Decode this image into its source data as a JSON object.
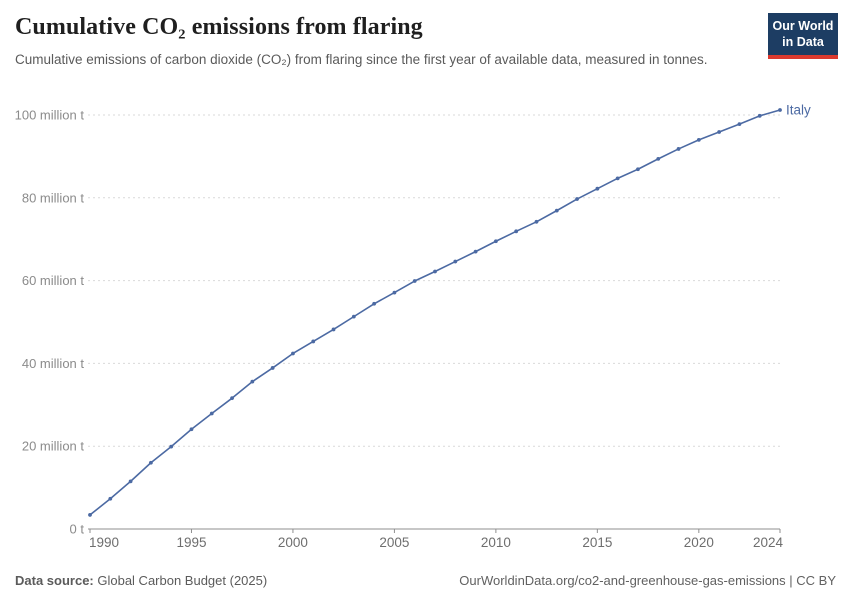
{
  "header": {
    "title": "Cumulative CO₂ emissions from flaring",
    "subtitle": "Cumulative emissions of carbon dioxide (CO₂) from flaring since the first year of available data, measured in tonnes.",
    "logo_line1": "Our World",
    "logo_line2": "in Data"
  },
  "chart_data": {
    "type": "line",
    "title": "Cumulative CO₂ emissions from flaring",
    "unit": "million t",
    "entity_label": "Italy",
    "grid": "horizontal-dashed",
    "legend_position": "end-of-line",
    "xlim": [
      1990,
      2024
    ],
    "ylim": [
      0,
      100
    ],
    "x": [
      1990,
      1991,
      1992,
      1993,
      1994,
      1995,
      1996,
      1997,
      1998,
      1999,
      2000,
      2001,
      2002,
      2003,
      2004,
      2005,
      2006,
      2007,
      2008,
      2009,
      2010,
      2011,
      2012,
      2013,
      2014,
      2015,
      2016,
      2017,
      2018,
      2019,
      2020,
      2021,
      2022,
      2023,
      2024
    ],
    "series": [
      {
        "name": "Italy",
        "values": [
          3.4,
          7.3,
          11.5,
          16.0,
          19.9,
          24.1,
          27.9,
          31.6,
          35.6,
          38.9,
          42.4,
          45.3,
          48.2,
          51.3,
          54.4,
          57.1,
          59.9,
          62.2,
          64.6,
          67.0,
          69.5,
          71.9,
          74.2,
          76.9,
          79.7,
          82.2,
          84.7,
          86.9,
          89.4,
          91.8,
          94.0,
          95.9,
          97.8,
          99.8,
          101.2
        ]
      }
    ],
    "yticks": [
      {
        "value": 0,
        "label": "0 t"
      },
      {
        "value": 20,
        "label": "20 million t"
      },
      {
        "value": 40,
        "label": "40 million t"
      },
      {
        "value": 60,
        "label": "60 million t"
      },
      {
        "value": 80,
        "label": "80 million t"
      },
      {
        "value": 100,
        "label": "100 million t"
      }
    ],
    "xticks": [
      {
        "value": 1990,
        "label": "1990"
      },
      {
        "value": 1995,
        "label": "1995"
      },
      {
        "value": 2000,
        "label": "2000"
      },
      {
        "value": 2005,
        "label": "2005"
      },
      {
        "value": 2010,
        "label": "2010"
      },
      {
        "value": 2015,
        "label": "2015"
      },
      {
        "value": 2020,
        "label": "2020"
      },
      {
        "value": 2024,
        "label": "2024"
      }
    ]
  },
  "footer": {
    "datasource_label": "Data source:",
    "datasource_value": " Global Carbon Budget (2025)",
    "attribution": "OurWorldinData.org/co2-and-greenhouse-gas-emissions | CC BY"
  },
  "colors": {
    "line": "#4c6aa3",
    "grid": "#d9d9d9",
    "axis": "#8f8f8f",
    "tick_label": "#6e6e6e",
    "y_label": "#8b8b8b",
    "logo_bg": "#1d3d63",
    "logo_bar": "#dc3a2f"
  }
}
